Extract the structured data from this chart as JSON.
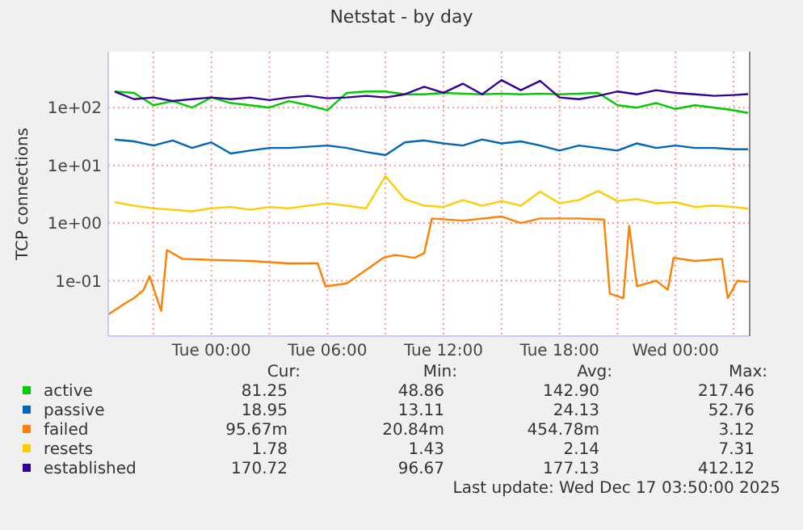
{
  "chart_data": {
    "type": "line",
    "title": "Netstat - by day",
    "ylabel": "TCP connections",
    "log": true,
    "ylim": [
      0.011,
      930
    ],
    "yticks": [
      {
        "value": 0.1,
        "label": "1e-01"
      },
      {
        "value": 1,
        "label": "1e+00"
      },
      {
        "value": 10,
        "label": "1e+01"
      },
      {
        "value": 100,
        "label": "1e+02"
      }
    ],
    "xlim": [
      "2025-12-15T18:40",
      "2025-12-17T03:50"
    ],
    "xticks": [
      {
        "value": "2025-12-15T21:00",
        "label": null
      },
      {
        "value": "2025-12-16T00:00",
        "label": "Tue 00:00"
      },
      {
        "value": "2025-12-16T03:00",
        "label": null
      },
      {
        "value": "2025-12-16T06:00",
        "label": "Tue 06:00"
      },
      {
        "value": "2025-12-16T09:00",
        "label": null
      },
      {
        "value": "2025-12-16T12:00",
        "label": "Tue 12:00"
      },
      {
        "value": "2025-12-16T15:00",
        "label": null
      },
      {
        "value": "2025-12-16T18:00",
        "label": "Tue 18:00"
      },
      {
        "value": "2025-12-16T21:00",
        "label": null
      },
      {
        "value": "2025-12-17T00:00",
        "label": "Wed 00:00"
      },
      {
        "value": "2025-12-17T03:00",
        "label": null
      }
    ],
    "grid": true,
    "legend": "bottom",
    "x": [
      "2025-12-15T19:00",
      "2025-12-15T20:00",
      "2025-12-15T21:00",
      "2025-12-15T22:00",
      "2025-12-15T23:00",
      "2025-12-16T00:00",
      "2025-12-16T01:00",
      "2025-12-16T02:00",
      "2025-12-16T03:00",
      "2025-12-16T04:00",
      "2025-12-16T05:00",
      "2025-12-16T06:00",
      "2025-12-16T07:00",
      "2025-12-16T08:00",
      "2025-12-16T09:00",
      "2025-12-16T10:00",
      "2025-12-16T11:00",
      "2025-12-16T12:00",
      "2025-12-16T13:00",
      "2025-12-16T14:00",
      "2025-12-16T15:00",
      "2025-12-16T16:00",
      "2025-12-16T17:00",
      "2025-12-16T18:00",
      "2025-12-16T19:00",
      "2025-12-16T20:00",
      "2025-12-16T21:00",
      "2025-12-16T22:00",
      "2025-12-16T23:00",
      "2025-12-17T00:00",
      "2025-12-17T01:00",
      "2025-12-17T02:00",
      "2025-12-17T03:00",
      "2025-12-17T03:45"
    ],
    "series": [
      {
        "name": "active",
        "color": "#00cc00",
        "values": [
          190,
          180,
          110,
          130,
          100,
          150,
          120,
          110,
          100,
          130,
          110,
          90,
          180,
          190,
          190,
          170,
          170,
          180,
          175,
          170,
          175,
          170,
          175,
          170,
          175,
          180,
          110,
          100,
          120,
          95,
          110,
          100,
          90,
          81
        ]
      },
      {
        "name": "passive",
        "color": "#0066b3",
        "values": [
          28,
          26,
          22,
          27,
          20,
          25,
          16,
          18,
          20,
          20,
          21,
          22,
          20,
          17,
          15,
          25,
          27,
          24,
          22,
          28,
          24,
          26,
          22,
          18,
          22,
          20,
          18,
          24,
          20,
          22,
          20,
          20,
          19,
          18.95
        ]
      },
      {
        "name": "failed",
        "color": "#ff8000",
        "x": [
          "2025-12-15T18:40",
          "2025-12-15T19:30",
          "2025-12-15T20:00",
          "2025-12-15T20:30",
          "2025-12-15T20:48",
          "2025-12-15T21:24",
          "2025-12-15T21:42",
          "2025-12-15T22:30",
          "2025-12-16T00:00",
          "2025-12-16T02:00",
          "2025-12-16T04:00",
          "2025-12-16T05:30",
          "2025-12-16T05:54",
          "2025-12-16T07:00",
          "2025-12-16T08:54",
          "2025-12-16T09:30",
          "2025-12-16T10:30",
          "2025-12-16T11:00",
          "2025-12-16T11:24",
          "2025-12-16T13:00",
          "2025-12-16T15:00",
          "2025-12-16T16:00",
          "2025-12-16T17:00",
          "2025-12-16T19:00",
          "2025-12-16T20:18",
          "2025-12-16T20:36",
          "2025-12-16T21:18",
          "2025-12-16T21:36",
          "2025-12-16T22:00",
          "2025-12-16T23:00",
          "2025-12-16T23:36",
          "2025-12-16T23:54",
          "2025-12-17T01:00",
          "2025-12-17T02:24",
          "2025-12-17T02:42",
          "2025-12-17T03:12",
          "2025-12-17T03:45"
        ],
        "values": [
          0.026,
          0.04,
          0.05,
          0.07,
          0.12,
          0.03,
          0.34,
          0.24,
          0.23,
          0.22,
          0.2,
          0.2,
          0.08,
          0.09,
          0.25,
          0.28,
          0.25,
          0.3,
          1.2,
          1.1,
          1.3,
          1.0,
          1.2,
          1.2,
          1.15,
          0.06,
          0.05,
          0.9,
          0.08,
          0.1,
          0.07,
          0.25,
          0.22,
          0.24,
          0.05,
          0.1,
          0.0957
        ]
      },
      {
        "name": "resets",
        "color": "#ffcc00",
        "values": [
          2.3,
          2,
          1.8,
          1.7,
          1.6,
          1.8,
          1.9,
          1.7,
          1.9,
          1.8,
          2,
          2.2,
          2,
          1.8,
          6.5,
          2.6,
          2,
          1.9,
          2.5,
          2,
          2.4,
          2,
          3.5,
          2.2,
          2.5,
          3.6,
          2.4,
          2.6,
          2.2,
          2.3,
          1.9,
          2,
          1.9,
          1.78
        ]
      },
      {
        "name": "established",
        "color": "#330099",
        "values": [
          190,
          140,
          150,
          130,
          140,
          150,
          140,
          150,
          135,
          150,
          160,
          145,
          150,
          160,
          150,
          170,
          230,
          180,
          260,
          170,
          300,
          200,
          290,
          150,
          140,
          160,
          190,
          170,
          200,
          180,
          170,
          160,
          165,
          171
        ]
      }
    ],
    "annotations": [
      "Cur:",
      "Min:",
      "Avg:",
      "Max:",
      "81.25",
      "48.86",
      "142.90",
      "217.46",
      "18.95",
      "13.11",
      "24.13",
      "52.76",
      "95.67m",
      "20.84m",
      "454.78m",
      "3.12",
      "1.78",
      "1.43",
      "2.14",
      "7.31",
      "170.72",
      "96.67",
      "177.13",
      "412.12",
      "Last update: Wed Dec 17 03:50:00 2025"
    ]
  }
}
